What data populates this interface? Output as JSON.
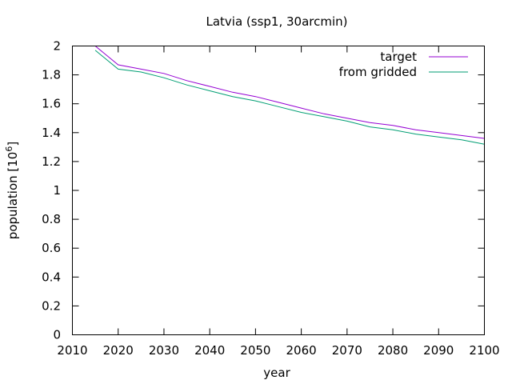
{
  "chart_data": {
    "type": "line",
    "title": "Latvia (ssp1, 30arcmin)",
    "xlabel": "year",
    "ylabel_main": "population [10",
    "ylabel_exp": "6",
    "ylabel_close": "]",
    "xlim": [
      2010,
      2100
    ],
    "ylim": [
      0,
      2
    ],
    "xticks": [
      2010,
      2020,
      2030,
      2040,
      2050,
      2060,
      2070,
      2080,
      2090,
      2100
    ],
    "xtick_labels": [
      "2010",
      "2020",
      "2030",
      "2040",
      "2050",
      "2060",
      "2070",
      "2080",
      "2090",
      "2100"
    ],
    "yticks": [
      0,
      0.2,
      0.4,
      0.6,
      0.8,
      1,
      1.2,
      1.4,
      1.6,
      1.8,
      2
    ],
    "ytick_labels": [
      "0",
      "0.2",
      "0.4",
      "0.6",
      "0.8",
      "1",
      "1.2",
      "1.4",
      "1.6",
      "1.8",
      "2"
    ],
    "grid": false,
    "legend_position": "top-right",
    "series": [
      {
        "name": "target",
        "color": "#9400d3",
        "x": [
          2015,
          2020,
          2025,
          2030,
          2035,
          2040,
          2045,
          2050,
          2055,
          2060,
          2065,
          2070,
          2075,
          2080,
          2085,
          2090,
          2095,
          2100
        ],
        "y": [
          2.0,
          1.87,
          1.84,
          1.81,
          1.76,
          1.72,
          1.68,
          1.65,
          1.61,
          1.57,
          1.53,
          1.5,
          1.47,
          1.45,
          1.42,
          1.4,
          1.38,
          1.36
        ]
      },
      {
        "name": "from gridded",
        "color": "#009e73",
        "x": [
          2015,
          2020,
          2025,
          2030,
          2035,
          2040,
          2045,
          2050,
          2055,
          2060,
          2065,
          2070,
          2075,
          2080,
          2085,
          2090,
          2095,
          2100
        ],
        "y": [
          1.97,
          1.84,
          1.82,
          1.78,
          1.73,
          1.69,
          1.65,
          1.62,
          1.58,
          1.54,
          1.51,
          1.48,
          1.44,
          1.42,
          1.39,
          1.37,
          1.35,
          1.32
        ]
      }
    ]
  }
}
